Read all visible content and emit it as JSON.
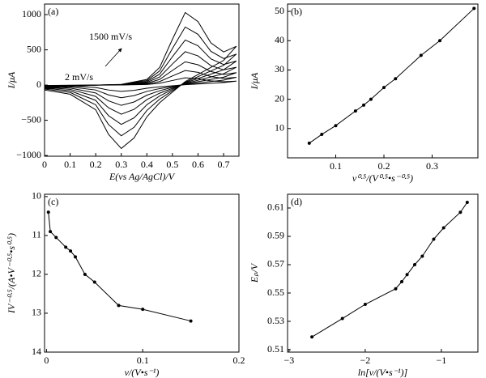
{
  "chart_data": [
    {
      "type": "line",
      "title": "(a)",
      "xlabel": "E(vs Ag/AgCl)/V",
      "ylabel": "I/μA",
      "annotations": [
        "1500 mV/s",
        "2 mV/s"
      ],
      "x": [
        0,
        0.1,
        0.2,
        0.3,
        0.4,
        0.45,
        0.5,
        0.55,
        0.6,
        0.65,
        0.7,
        0.75,
        0.7,
        0.65,
        0.6,
        0.55,
        0.5,
        0.45,
        0.4,
        0.35,
        0.3,
        0.25,
        0.2,
        0.1,
        0
      ],
      "series": [
        {
          "color": "#000000",
          "values": [
            -60,
            -20,
            0,
            10,
            80,
            250,
            650,
            1030,
            900,
            600,
            470,
            550,
            350,
            250,
            150,
            50,
            -100,
            -250,
            -450,
            -750,
            -900,
            -700,
            -350,
            -130,
            -70
          ]
        },
        {
          "color": "#000000",
          "values": [
            -48,
            -16,
            0,
            8,
            64,
            200,
            520,
            824,
            720,
            480,
            376,
            440,
            280,
            200,
            120,
            40,
            -80,
            -200,
            -360,
            -600,
            -720,
            -560,
            -280,
            -104,
            -56
          ]
        },
        {
          "color": "#000000",
          "values": [
            -37,
            -12,
            0,
            6,
            50,
            155,
            403,
            639,
            558,
            372,
            291,
            341,
            217,
            155,
            93,
            31,
            -62,
            -155,
            -279,
            -465,
            -558,
            -434,
            -217,
            -81,
            -43
          ]
        },
        {
          "color": "#000000",
          "values": [
            -28,
            -9,
            0,
            5,
            37,
            115,
            299,
            474,
            414,
            276,
            216,
            253,
            161,
            115,
            69,
            23,
            -46,
            -115,
            -207,
            -345,
            -414,
            -322,
            -161,
            -60,
            -32
          ]
        },
        {
          "color": "#000000",
          "values": [
            -19,
            -6,
            0,
            3,
            26,
            80,
            208,
            330,
            288,
            192,
            150,
            176,
            112,
            80,
            48,
            16,
            -32,
            -80,
            -144,
            -240,
            -288,
            -224,
            -112,
            -42,
            -22
          ]
        },
        {
          "color": "#000000",
          "values": [
            -12,
            -4,
            0,
            2,
            16,
            50,
            130,
            206,
            180,
            120,
            94,
            110,
            70,
            50,
            30,
            10,
            -20,
            -50,
            -90,
            -150,
            -180,
            -140,
            -70,
            -26,
            -14
          ]
        },
        {
          "color": "#000000",
          "values": [
            -6,
            -2,
            0,
            1,
            8,
            25,
            65,
            103,
            90,
            60,
            47,
            55,
            35,
            25,
            15,
            5,
            -10,
            -25,
            -45,
            -75,
            -90,
            -70,
            -35,
            -13,
            -7
          ]
        }
      ],
      "xlim": [
        0,
        0.76
      ],
      "ylim": [
        -1010,
        1150
      ],
      "xticks": [
        0,
        0.1,
        0.2,
        0.3,
        0.4,
        0.5,
        0.6,
        0.7
      ],
      "yticks": [
        {
          "value": -1000,
          "label": "−1000"
        },
        {
          "value": -500,
          "label": "−500"
        },
        0,
        500,
        1000
      ]
    },
    {
      "type": "line",
      "title": "(b)",
      "xlabel": "ν⁰·⁵/(V⁰·⁵•s⁻⁰·⁵)",
      "ylabel": "I/μA",
      "markers": true,
      "x": [
        0.045,
        0.071,
        0.1,
        0.141,
        0.158,
        0.173,
        0.2,
        0.224,
        0.277,
        0.316,
        0.387
      ],
      "series": [
        {
          "color": "#000000",
          "values": [
            5,
            8,
            11,
            16,
            18,
            20,
            24,
            27,
            35,
            40,
            51
          ]
        }
      ],
      "xlim": [
        0,
        0.395
      ],
      "ylim": [
        0,
        52.5
      ],
      "xticks": [
        0.1,
        0.2,
        0.3
      ],
      "yticks": [
        10,
        20,
        30,
        40,
        50
      ]
    },
    {
      "type": "line",
      "title": "(c)",
      "xlabel": "ν/(V•s⁻¹)",
      "ylabel": "IV⁻⁰·⁵/(A•V⁻⁰·⁵•s⁰·⁵)",
      "markers": true,
      "x": [
        0.002,
        0.004,
        0.01,
        0.02,
        0.025,
        0.03,
        0.04,
        0.05,
        0.075,
        0.1,
        0.15
      ],
      "series": [
        {
          "color": "#000000",
          "values": [
            10.4,
            10.9,
            11.05,
            11.3,
            11.4,
            11.55,
            12,
            12.2,
            12.8,
            12.9,
            13.2
          ]
        }
      ],
      "xlim": [
        -0.002,
        0.2
      ],
      "ylim": [
        14,
        9.94
      ],
      "xticks": [
        0,
        0.1,
        0.2
      ],
      "yticks": [
        10,
        11,
        12,
        13,
        14
      ]
    },
    {
      "type": "line",
      "title": "(d)",
      "xlabel": "ln[ν/(V•s⁻¹)]",
      "ylabel": "Eₚ/V",
      "markers": true,
      "x": [
        -2.7,
        -2.3,
        -2,
        -1.6,
        -1.52,
        -1.45,
        -1.35,
        -1.25,
        -1.1,
        -0.97,
        -0.75,
        -0.66
      ],
      "series": [
        {
          "color": "#000000",
          "values": [
            0.519,
            0.532,
            0.542,
            0.553,
            0.558,
            0.563,
            0.57,
            0.576,
            0.588,
            0.596,
            0.607,
            0.614
          ]
        }
      ],
      "xlim": [
        -3.02,
        -0.52
      ],
      "ylim": [
        0.5083,
        0.6197
      ],
      "xticks": [
        {
          "value": -3,
          "label": "−3"
        },
        {
          "value": -2,
          "label": "−2"
        },
        {
          "value": -1,
          "label": "−1"
        }
      ],
      "yticks": [
        0.51,
        0.53,
        0.55,
        0.57,
        0.59,
        0.61
      ]
    }
  ]
}
